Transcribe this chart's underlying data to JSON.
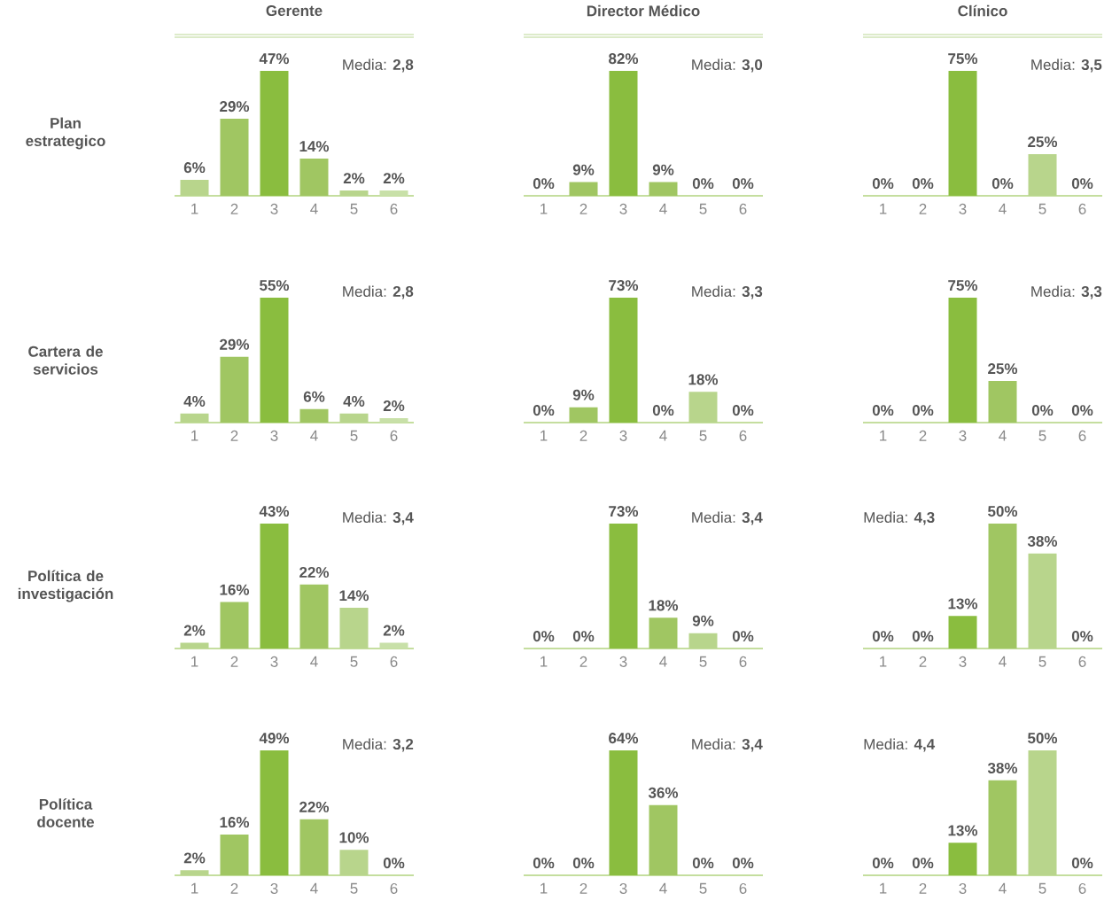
{
  "chart_data": [
    {
      "type": "bar",
      "title": "Gerente",
      "ylabel": "Plan estrategico",
      "categories": [
        "1",
        "2",
        "3",
        "4",
        "5",
        "6"
      ],
      "values": [
        6,
        29,
        47,
        14,
        2,
        2
      ],
      "value_labels": [
        "6%",
        "29%",
        "47%",
        "14%",
        "2%",
        "2%"
      ],
      "colors": [
        "#b8d58c",
        "#a0c662",
        "#8abd3f",
        "#a0c662",
        "#b8d58c",
        "#c8e0a8"
      ],
      "annotations": [
        "Media: **2,8**"
      ]
    },
    {
      "type": "bar",
      "title": "Director Médico",
      "categories": [
        "1",
        "2",
        "3",
        "4",
        "5",
        "6"
      ],
      "values": [
        0,
        9,
        82,
        9,
        0,
        0
      ],
      "value_labels": [
        "0%",
        "9%",
        "82%",
        "9%",
        "0%",
        "0%"
      ],
      "colors": [
        "#b8d58c",
        "#a0c662",
        "#8abd3f",
        "#a0c662",
        "#b8d58c",
        "#c8e0a8"
      ],
      "annotations": [
        "Media: **3,0**"
      ]
    },
    {
      "type": "bar",
      "title": "Clínico",
      "categories": [
        "1",
        "2",
        "3",
        "4",
        "5",
        "6"
      ],
      "values": [
        0,
        0,
        75,
        0,
        25,
        0
      ],
      "value_labels": [
        "0%",
        "0%",
        "75%",
        "0%",
        "25%",
        "0%"
      ],
      "colors": [
        "#b8d58c",
        "#a0c662",
        "#8abd3f",
        "#a0c662",
        "#b8d58c",
        "#c8e0a8"
      ],
      "annotations": [
        "Media: **3,5**"
      ]
    },
    {
      "type": "bar",
      "ylabel": "Cartera de servicios",
      "categories": [
        "1",
        "2",
        "3",
        "4",
        "5",
        "6"
      ],
      "values": [
        4,
        29,
        55,
        6,
        4,
        2
      ],
      "value_labels": [
        "4%",
        "29%",
        "55%",
        "6%",
        "4%",
        "2%"
      ],
      "colors": [
        "#b8d58c",
        "#a0c662",
        "#8abd3f",
        "#a0c662",
        "#b8d58c",
        "#c8e0a8"
      ],
      "annotations": [
        "Media: **2,8**"
      ]
    },
    {
      "type": "bar",
      "categories": [
        "1",
        "2",
        "3",
        "4",
        "5",
        "6"
      ],
      "values": [
        0,
        9,
        73,
        0,
        18,
        0
      ],
      "value_labels": [
        "0%",
        "9%",
        "73%",
        "0%",
        "18%",
        "0%"
      ],
      "colors": [
        "#b8d58c",
        "#a0c662",
        "#8abd3f",
        "#a0c662",
        "#b8d58c",
        "#c8e0a8"
      ],
      "annotations": [
        "Media: **3,3**"
      ]
    },
    {
      "type": "bar",
      "categories": [
        "1",
        "2",
        "3",
        "4",
        "5",
        "6"
      ],
      "values": [
        0,
        0,
        75,
        25,
        0,
        0
      ],
      "value_labels": [
        "0%",
        "0%",
        "75%",
        "25%",
        "0%",
        "0%"
      ],
      "colors": [
        "#b8d58c",
        "#a0c662",
        "#8abd3f",
        "#a0c662",
        "#b8d58c",
        "#c8e0a8"
      ],
      "annotations": [
        "Media: **3,3**"
      ]
    },
    {
      "type": "bar",
      "ylabel": "Política de investigación",
      "categories": [
        "1",
        "2",
        "3",
        "4",
        "5",
        "6"
      ],
      "values": [
        2,
        16,
        43,
        22,
        14,
        2
      ],
      "value_labels": [
        "2%",
        "16%",
        "43%",
        "22%",
        "14%",
        "2%"
      ],
      "colors": [
        "#b8d58c",
        "#a0c662",
        "#8abd3f",
        "#a0c662",
        "#b8d58c",
        "#c8e0a8"
      ],
      "annotations": [
        "Media: **3,4**"
      ]
    },
    {
      "type": "bar",
      "categories": [
        "1",
        "2",
        "3",
        "4",
        "5",
        "6"
      ],
      "values": [
        0,
        0,
        73,
        18,
        9,
        0
      ],
      "value_labels": [
        "0%",
        "0%",
        "73%",
        "18%",
        "9%",
        "0%"
      ],
      "colors": [
        "#b8d58c",
        "#a0c662",
        "#8abd3f",
        "#a0c662",
        "#b8d58c",
        "#c8e0a8"
      ],
      "annotations": [
        "Media: **3,4**"
      ]
    },
    {
      "type": "bar",
      "categories": [
        "1",
        "2",
        "3",
        "4",
        "5",
        "6"
      ],
      "values": [
        0,
        0,
        13,
        50,
        38,
        0
      ],
      "value_labels": [
        "0%",
        "0%",
        "13%",
        "50%",
        "38%",
        "0%"
      ],
      "colors": [
        "#b8d58c",
        "#a0c662",
        "#8abd3f",
        "#a0c662",
        "#b8d58c",
        "#c8e0a8"
      ],
      "annotations": [
        "Media: **4,3**"
      ]
    },
    {
      "type": "bar",
      "ylabel": "Política docente",
      "categories": [
        "1",
        "2",
        "3",
        "4",
        "5",
        "6"
      ],
      "values": [
        2,
        16,
        49,
        22,
        10,
        0
      ],
      "value_labels": [
        "2%",
        "16%",
        "49%",
        "22%",
        "10%",
        "0%"
      ],
      "colors": [
        "#b8d58c",
        "#a0c662",
        "#8abd3f",
        "#a0c662",
        "#b8d58c",
        "#c8e0a8"
      ],
      "annotations": [
        "Media: **3,2**"
      ]
    },
    {
      "type": "bar",
      "categories": [
        "1",
        "2",
        "3",
        "4",
        "5",
        "6"
      ],
      "values": [
        0,
        0,
        64,
        36,
        0,
        0
      ],
      "value_labels": [
        "0%",
        "0%",
        "64%",
        "36%",
        "0%",
        "0%"
      ],
      "colors": [
        "#b8d58c",
        "#a0c662",
        "#8abd3f",
        "#a0c662",
        "#b8d58c",
        "#c8e0a8"
      ],
      "annotations": [
        "Media: **3,4**"
      ]
    },
    {
      "type": "bar",
      "categories": [
        "1",
        "2",
        "3",
        "4",
        "5",
        "6"
      ],
      "values": [
        0,
        0,
        13,
        38,
        50,
        0
      ],
      "value_labels": [
        "0%",
        "0%",
        "13%",
        "38%",
        "50%",
        "0%"
      ],
      "colors": [
        "#b8d58c",
        "#a0c662",
        "#8abd3f",
        "#a0c662",
        "#b8d58c",
        "#c8e0a8"
      ],
      "annotations": [
        "Media: **4,4**"
      ]
    }
  ]
}
